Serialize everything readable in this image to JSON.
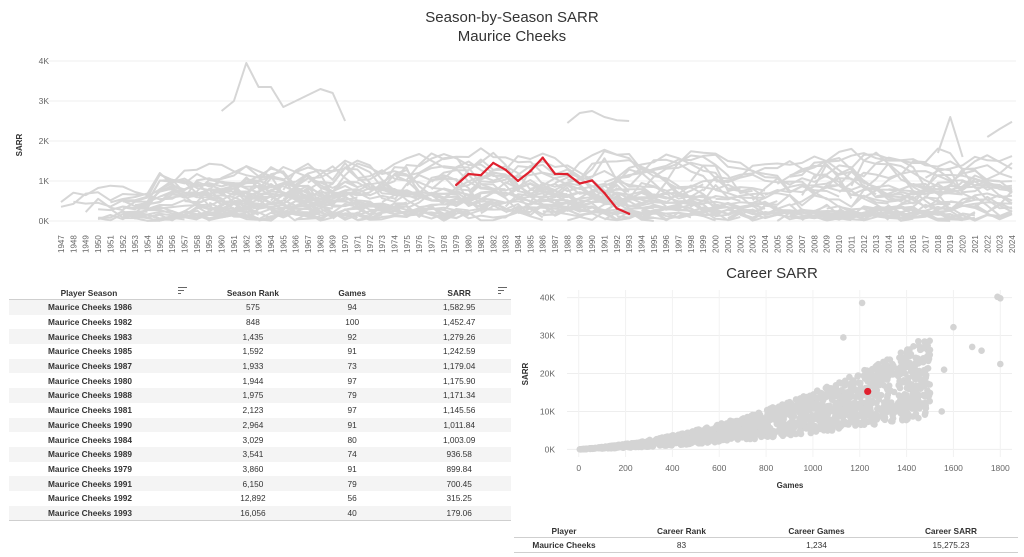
{
  "header": {
    "title": "Season-by-Season SARR",
    "subtitle": "Maurice Cheeks"
  },
  "colors": {
    "highlight": "#e0202e",
    "background_lines": "#d6d6d6",
    "scatter_points": "#d4d4d4"
  },
  "chart_data": [
    {
      "type": "line",
      "title": "Season-by-Season SARR",
      "subtitle": "Maurice Cheeks",
      "ylabel": "SARR",
      "xlabel": "",
      "xlim": [
        1947,
        2024
      ],
      "ylim": [
        0,
        4000
      ],
      "y_ticks": [
        "0K",
        "1K",
        "2K",
        "3K",
        "4K"
      ],
      "y_tick_values": [
        0,
        1000,
        2000,
        3000,
        4000
      ],
      "grid": true,
      "legend": "none",
      "series": [
        {
          "name": "Maurice Cheeks",
          "highlight": true,
          "x": [
            1979,
            1980,
            1981,
            1982,
            1983,
            1984,
            1985,
            1986,
            1987,
            1988,
            1989,
            1990,
            1991,
            1992,
            1993
          ],
          "y": [
            899.84,
            1175.9,
            1145.56,
            1452.47,
            1279.26,
            1003.09,
            1242.59,
            1582.95,
            1179.04,
            1171.34,
            936.58,
            1011.84,
            700.45,
            315.25,
            179.06
          ]
        }
      ],
      "background_series_note": "other players",
      "background_peaks": {
        "x": [
          1960,
          1961,
          1962,
          1963,
          1964,
          1965,
          1966,
          1967,
          1968,
          1969,
          1970
        ],
        "y": [
          2750,
          3000,
          3950,
          3350,
          3350,
          2850,
          3000,
          3150,
          3300,
          3200,
          2500
        ]
      }
    },
    {
      "type": "scatter",
      "title": "Career SARR",
      "xlabel": "Games",
      "ylabel": "SARR",
      "xlim": [
        -50,
        1850
      ],
      "ylim": [
        -2000,
        42000
      ],
      "x_ticks": [
        0,
        200,
        400,
        600,
        800,
        1000,
        1200,
        1400,
        1600,
        1800
      ],
      "y_ticks": [
        "0K",
        "10K",
        "20K",
        "30K",
        "40K"
      ],
      "y_tick_values": [
        0,
        10000,
        20000,
        30000,
        40000
      ],
      "grid": true,
      "legend": "none",
      "highlight_point": {
        "name": "Maurice Cheeks",
        "x": 1234,
        "y": 15275.23
      },
      "outliers": [
        {
          "x": 1788,
          "y": 40200
        },
        {
          "x": 1800,
          "y": 39800
        },
        {
          "x": 1210,
          "y": 38600
        },
        {
          "x": 1600,
          "y": 32200
        },
        {
          "x": 1130,
          "y": 29500
        },
        {
          "x": 1450,
          "y": 28500
        },
        {
          "x": 1680,
          "y": 27000
        },
        {
          "x": 1720,
          "y": 26000
        },
        {
          "x": 1800,
          "y": 22500
        },
        {
          "x": 1560,
          "y": 21000
        },
        {
          "x": 1480,
          "y": 19000
        },
        {
          "x": 1550,
          "y": 10000
        }
      ]
    }
  ],
  "season_table": {
    "headers": {
      "player": "Player Season",
      "rank": "Season Rank",
      "games": "Games",
      "sarr": "SARR"
    },
    "rows": [
      {
        "player": "Maurice Cheeks 1986",
        "rank": "575",
        "games": "94",
        "sarr": "1,582.95"
      },
      {
        "player": "Maurice Cheeks 1982",
        "rank": "848",
        "games": "100",
        "sarr": "1,452.47"
      },
      {
        "player": "Maurice Cheeks 1983",
        "rank": "1,435",
        "games": "92",
        "sarr": "1,279.26"
      },
      {
        "player": "Maurice Cheeks 1985",
        "rank": "1,592",
        "games": "91",
        "sarr": "1,242.59"
      },
      {
        "player": "Maurice Cheeks 1987",
        "rank": "1,933",
        "games": "73",
        "sarr": "1,179.04"
      },
      {
        "player": "Maurice Cheeks 1980",
        "rank": "1,944",
        "games": "97",
        "sarr": "1,175.90"
      },
      {
        "player": "Maurice Cheeks 1988",
        "rank": "1,975",
        "games": "79",
        "sarr": "1,171.34"
      },
      {
        "player": "Maurice Cheeks 1981",
        "rank": "2,123",
        "games": "97",
        "sarr": "1,145.56"
      },
      {
        "player": "Maurice Cheeks 1990",
        "rank": "2,964",
        "games": "91",
        "sarr": "1,011.84"
      },
      {
        "player": "Maurice Cheeks 1984",
        "rank": "3,029",
        "games": "80",
        "sarr": "1,003.09"
      },
      {
        "player": "Maurice Cheeks 1989",
        "rank": "3,541",
        "games": "74",
        "sarr": "936.58"
      },
      {
        "player": "Maurice Cheeks 1979",
        "rank": "3,860",
        "games": "91",
        "sarr": "899.84"
      },
      {
        "player": "Maurice Cheeks 1991",
        "rank": "6,150",
        "games": "79",
        "sarr": "700.45"
      },
      {
        "player": "Maurice Cheeks 1992",
        "rank": "12,892",
        "games": "56",
        "sarr": "315.25"
      },
      {
        "player": "Maurice Cheeks 1993",
        "rank": "16,056",
        "games": "40",
        "sarr": "179.06"
      }
    ]
  },
  "career_table": {
    "headers": {
      "player": "Player",
      "rank": "Career Rank",
      "games": "Career Games",
      "sarr": "Career SARR"
    },
    "row": {
      "player": "Maurice Cheeks",
      "rank": "83",
      "games": "1,234",
      "sarr": "15,275.23"
    }
  },
  "icons": {
    "sort": "sort-icon"
  }
}
